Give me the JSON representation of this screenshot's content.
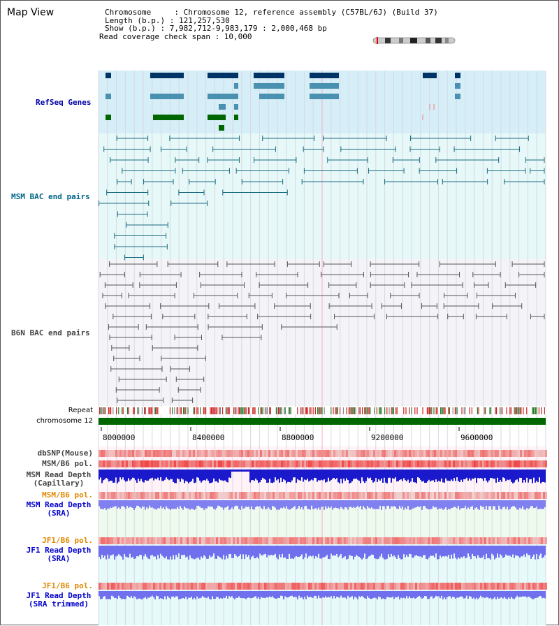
{
  "view_title": "Map View",
  "info": {
    "chromosome_line": "Chromosome     : Chromosome 12, reference assembly (C57BL/6J) (Build 37)",
    "length_line": "Length (b.p.) : 121,257,530",
    "show_line": "Show (b.p.) : 7,982,712-9,983,179 : 2,000,468 bp",
    "coverage_line": "Read coverage check span : 10,000"
  },
  "tracks": {
    "refseq": "RefSeq Genes",
    "msm_bac": "MSM BAC end pairs",
    "b6n_bac": "B6N BAC end pairs",
    "repeat": "Repeat",
    "chromosome": "chromosome 12",
    "dbsnp": "dbSNP(Mouse)",
    "msm_pol": "MSM/B6 pol.",
    "msm_depth_cap_1": "MSM Read Depth",
    "msm_depth_cap_2": "(Capillary)",
    "msm_pol2": "MSM/B6 pol.",
    "msm_depth_sra_1": "MSM Read Depth",
    "msm_depth_sra_2": "(SRA)",
    "jf1_pol": "JF1/B6 pol.",
    "jf1_depth_sra_1": "JF1 Read Depth",
    "jf1_depth_sra_2": "(SRA)",
    "jf1_pol2": "JF1/B6 pol.",
    "jf1_depth_trim_1": "JF1 Read Depth",
    "jf1_depth_trim_2": "(SRA trimmed)"
  },
  "axis_ticks": [
    "8000000",
    "8400000",
    "8800000",
    "9200000",
    "9600000"
  ],
  "colors": {
    "refseq_label": "#0000aa",
    "msm_label": "#006688",
    "b6n_label": "#444444",
    "orange_label": "#e08800",
    "blue_label": "#0000cc",
    "chromosome_bar": "#006600"
  }
}
